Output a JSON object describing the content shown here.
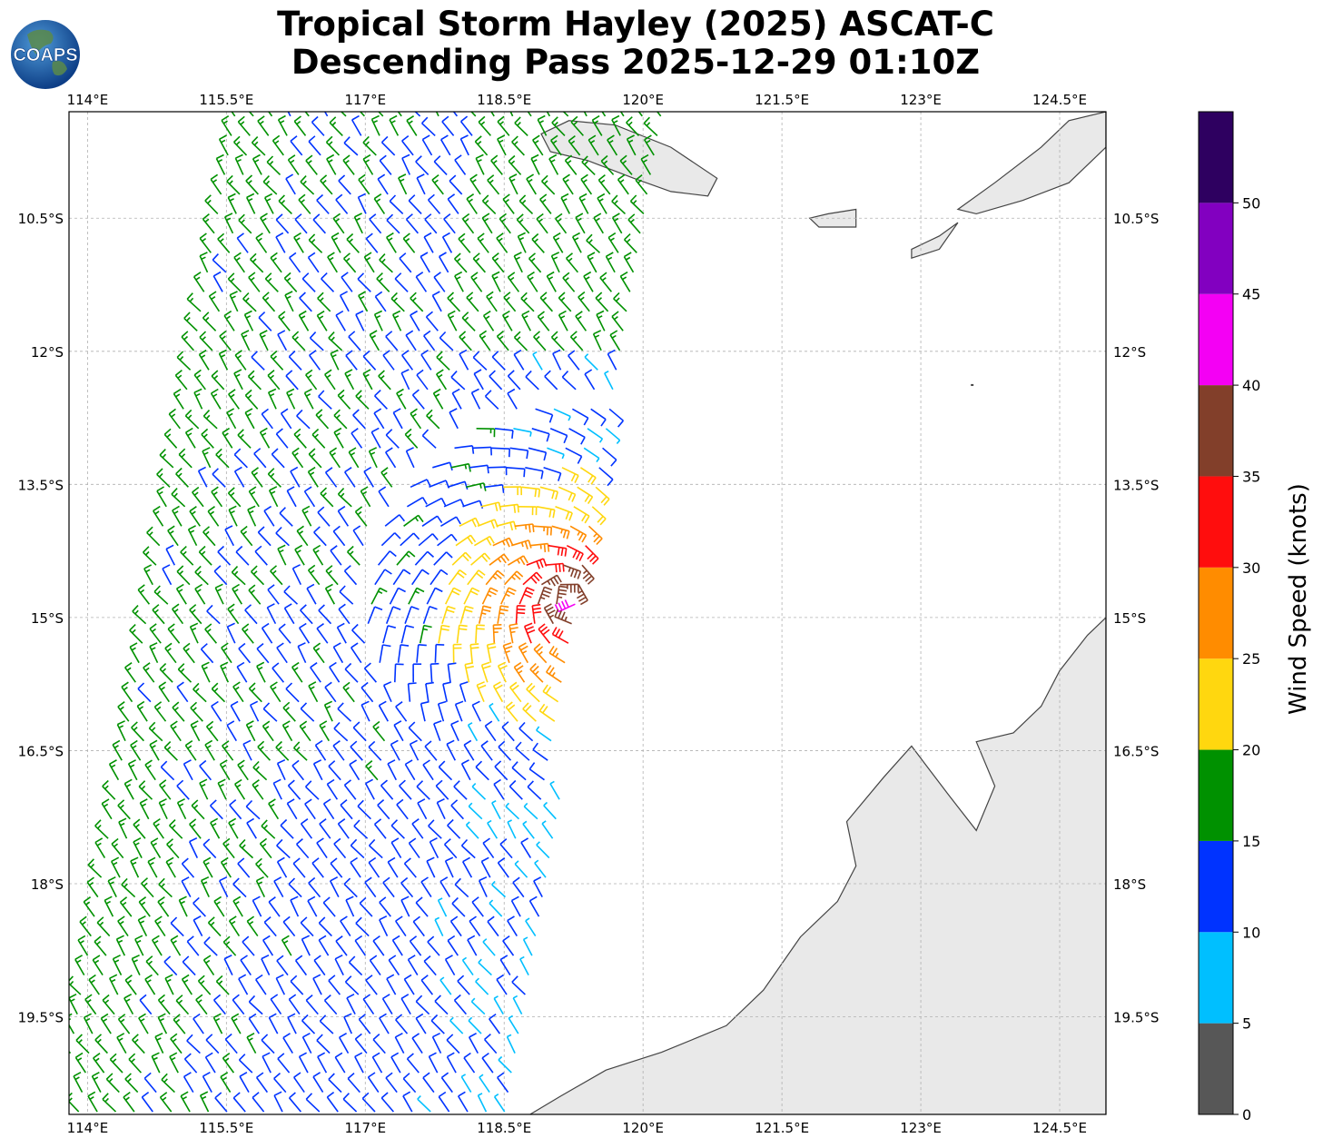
{
  "title": {
    "line1": "Tropical Storm Hayley (2025) ASCAT-C",
    "line2": "Descending Pass 2025-12-29 01:10Z"
  },
  "logo": {
    "text": "COAPS",
    "icon": "globe-icon"
  },
  "map": {
    "lon_range": [
      113.8,
      125.0
    ],
    "lat_range": [
      -20.6,
      -9.3
    ],
    "lon_ticks": [
      "114°E",
      "115.5°E",
      "117°E",
      "118.5°E",
      "120°E",
      "121.5°E",
      "123°E",
      "124.5°E"
    ],
    "lon_tick_values": [
      114,
      115.5,
      117,
      118.5,
      120,
      121.5,
      123,
      124.5
    ],
    "lat_ticks": [
      "10.5°S",
      "12°S",
      "13.5°S",
      "15°S",
      "16.5°S",
      "18°S",
      "19.5°S"
    ],
    "lat_tick_values": [
      -10.5,
      -12,
      -13.5,
      -15,
      -16.5,
      -18,
      -19.5
    ],
    "grid": true,
    "land_color": "#e9e9e9",
    "coast_color": "#444444"
  },
  "storm_center": {
    "lon": 119.2,
    "lat": -14.8
  },
  "colorbar": {
    "label": "Wind Speed (knots)",
    "ticks": [
      "0",
      "5",
      "10",
      "15",
      "20",
      "25",
      "30",
      "35",
      "40",
      "45",
      "50"
    ],
    "bins": [
      {
        "min": 0,
        "max": 5,
        "color": "#575757"
      },
      {
        "min": 5,
        "max": 10,
        "color": "#00bfff"
      },
      {
        "min": 10,
        "max": 15,
        "color": "#0033ff"
      },
      {
        "min": 15,
        "max": 20,
        "color": "#009100"
      },
      {
        "min": 20,
        "max": 25,
        "color": "#ffd70f"
      },
      {
        "min": 25,
        "max": 30,
        "color": "#ff8c00"
      },
      {
        "min": 30,
        "max": 35,
        "color": "#ff0d0d"
      },
      {
        "min": 35,
        "max": 40,
        "color": "#823f2a"
      },
      {
        "min": 40,
        "max": 45,
        "color": "#f400f4"
      },
      {
        "min": 45,
        "max": 50,
        "color": "#8200c0"
      },
      {
        "min": 50,
        "max": 55,
        "color": "#2e0060"
      }
    ]
  }
}
